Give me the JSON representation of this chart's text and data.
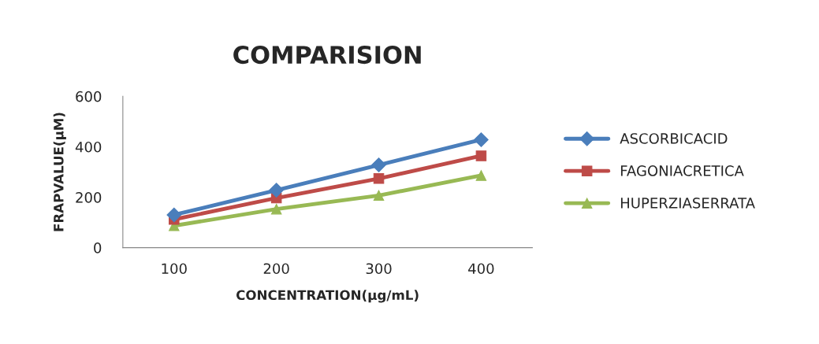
{
  "chart_data": {
    "type": "line",
    "title": "COMPARISION",
    "xlabel": "CONCENTRATION(μg/mL)",
    "ylabel": "FRAPVALUE(μM)",
    "categories": [
      "100",
      "200",
      "300",
      "400"
    ],
    "series": [
      {
        "name": "ASCORBICACID",
        "color": "#4a7ebb",
        "marker": "diamond",
        "values": [
          130,
          228,
          328,
          428
        ]
      },
      {
        "name": "FAGONIACRETICA",
        "color": "#be4b48",
        "marker": "square",
        "values": [
          112,
          197,
          274,
          364
        ]
      },
      {
        "name": "HUPERZIASERRATA",
        "color": "#98b954",
        "marker": "triangle",
        "values": [
          87,
          153,
          207,
          286
        ]
      }
    ],
    "ylim": [
      0,
      600
    ],
    "yticks": [
      0,
      200,
      400,
      600
    ],
    "grid": false,
    "legend": "right"
  }
}
